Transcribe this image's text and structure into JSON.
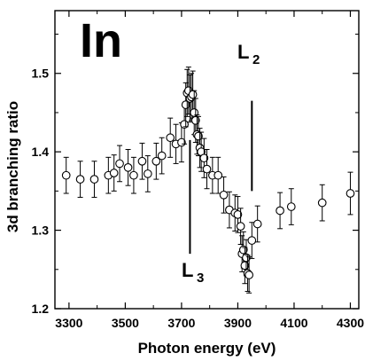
{
  "chart_data": {
    "type": "scatter",
    "title": "",
    "xlabel": "Photon energy (eV)",
    "ylabel": "3d branching ratio",
    "xlim": [
      3250,
      4330
    ],
    "ylim": [
      1.2,
      1.58
    ],
    "xticks": [
      3300,
      3500,
      3700,
      3900,
      4100,
      4300
    ],
    "yticks": [
      1.2,
      1.3,
      1.4,
      1.5
    ],
    "xtick_labels": [
      "3300",
      "3500",
      "3700",
      "3900",
      "4100",
      "4300"
    ],
    "ytick_labels": [
      "1.2",
      "1.3",
      "1.4",
      "1.5"
    ],
    "grid": false,
    "annotations": [
      {
        "id": "element",
        "text": "In"
      },
      {
        "id": "L2",
        "text": "L",
        "sub": "2",
        "line_x": 3950,
        "line_y": [
          1.35,
          1.465
        ]
      },
      {
        "id": "L3",
        "text": "L",
        "sub": "3",
        "line_x": 3730,
        "line_y": [
          1.27,
          1.415
        ]
      }
    ],
    "series": [
      {
        "marker": "open-circle",
        "x": [
          3290,
          3340,
          3390,
          3440,
          3460,
          3480,
          3510,
          3530,
          3560,
          3580,
          3610,
          3630,
          3660,
          3680,
          3700,
          3710,
          3715,
          3720,
          3725,
          3730,
          3735,
          3740,
          3745,
          3750,
          3755,
          3760,
          3765,
          3770,
          3780,
          3790,
          3810,
          3830,
          3850,
          3870,
          3890,
          3900,
          3910,
          3915,
          3920,
          3925,
          3930,
          3935,
          3940,
          3950,
          3970,
          4050,
          4090,
          4200,
          4300
        ],
        "y": [
          1.37,
          1.365,
          1.365,
          1.37,
          1.373,
          1.385,
          1.38,
          1.37,
          1.388,
          1.372,
          1.388,
          1.395,
          1.418,
          1.41,
          1.412,
          1.435,
          1.46,
          1.475,
          1.478,
          1.468,
          1.47,
          1.473,
          1.45,
          1.44,
          1.422,
          1.42,
          1.405,
          1.4,
          1.392,
          1.378,
          1.37,
          1.37,
          1.345,
          1.326,
          1.322,
          1.32,
          1.305,
          1.27,
          1.275,
          1.255,
          1.265,
          1.245,
          1.243,
          1.287,
          1.308,
          1.325,
          1.33,
          1.335,
          1.347
        ],
        "err": [
          0.023,
          0.023,
          0.023,
          0.023,
          0.023,
          0.023,
          0.023,
          0.023,
          0.023,
          0.023,
          0.023,
          0.023,
          0.025,
          0.025,
          0.025,
          0.025,
          0.028,
          0.03,
          0.03,
          0.03,
          0.03,
          0.03,
          0.028,
          0.028,
          0.025,
          0.025,
          0.025,
          0.025,
          0.025,
          0.025,
          0.023,
          0.023,
          0.023,
          0.023,
          0.023,
          0.023,
          0.023,
          0.023,
          0.023,
          0.023,
          0.023,
          0.023,
          0.023,
          0.023,
          0.023,
          0.023,
          0.023,
          0.023,
          0.027
        ]
      }
    ]
  }
}
